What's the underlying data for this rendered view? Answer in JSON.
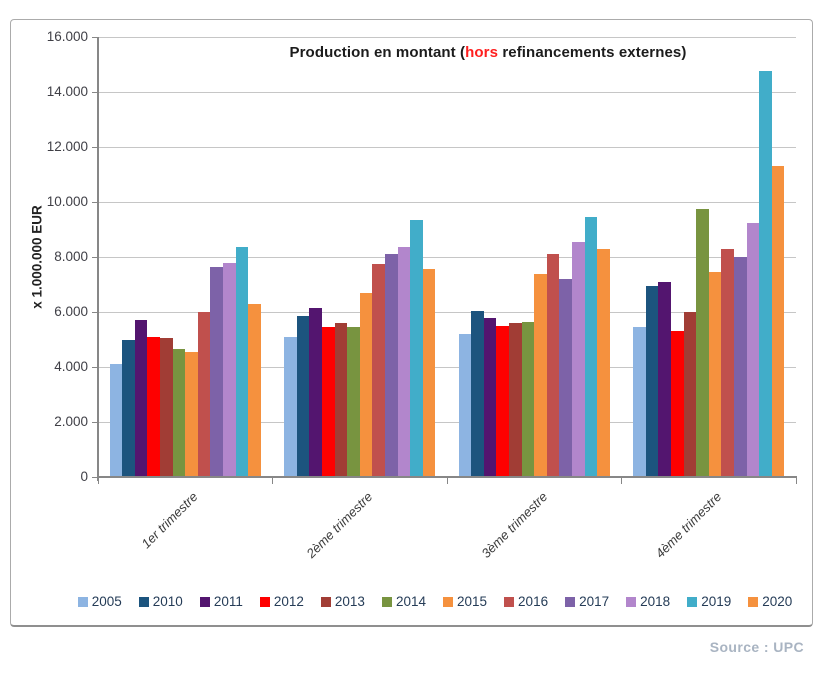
{
  "chart_data": {
    "type": "bar",
    "title": {
      "prefix": "Production en montant (",
      "highlight": "hors",
      "suffix": " refinancements externes)"
    },
    "ylabel": "x 1.000.000 EUR",
    "categories": [
      "1er trimestre",
      "2ème trimestre",
      "3ème trimestre",
      "4ème trimestre"
    ],
    "series": [
      {
        "name": "2005",
        "color": "#8DB4E2",
        "values": [
          4100,
          5100,
          5200,
          5450
        ]
      },
      {
        "name": "2010",
        "color": "#1C547E",
        "values": [
          5000,
          5850,
          6050,
          6950
        ]
      },
      {
        "name": "2011",
        "color": "#53156F",
        "values": [
          5700,
          6150,
          5800,
          7100
        ]
      },
      {
        "name": "2012",
        "color": "#FE0000",
        "values": [
          5100,
          5450,
          5500,
          5300
        ]
      },
      {
        "name": "2013",
        "color": "#A13D35",
        "values": [
          5050,
          5600,
          5600,
          6000
        ]
      },
      {
        "name": "2014",
        "color": "#789440",
        "values": [
          4650,
          5450,
          5650,
          9750
        ]
      },
      {
        "name": "2015",
        "color": "#F5913E",
        "values": [
          4550,
          6700,
          7400,
          7450
        ]
      },
      {
        "name": "2016",
        "color": "#C0504D",
        "values": [
          6000,
          7750,
          8100,
          8300
        ]
      },
      {
        "name": "2017",
        "color": "#7D62A8",
        "values": [
          7650,
          8100,
          7200,
          8000
        ]
      },
      {
        "name": "2018",
        "color": "#B286CC",
        "values": [
          7800,
          8350,
          8550,
          9250
        ]
      },
      {
        "name": "2019",
        "color": "#41ADC9",
        "values": [
          8350,
          9350,
          9450,
          14750
        ]
      },
      {
        "name": "2020",
        "color": "#F5913E",
        "values": [
          6300,
          7550,
          8300,
          11300
        ]
      }
    ],
    "y_axis": {
      "min": 0,
      "max": 16000,
      "step": 2000,
      "tick_labels": [
        "0",
        "2.000",
        "4.000",
        "6.000",
        "8.000",
        "10.000",
        "12.000",
        "14.000",
        "16.000"
      ]
    },
    "grid": true,
    "legend_position": "bottom",
    "colors": {
      "gridline": "#C6C6C6",
      "axis": "#878787",
      "title_text": "#1C1C1C",
      "title_highlight": "#FF1F1F",
      "tick_text": "#3F3F46",
      "legend_text": "#253C57"
    }
  },
  "source_note": "Source : UPC"
}
